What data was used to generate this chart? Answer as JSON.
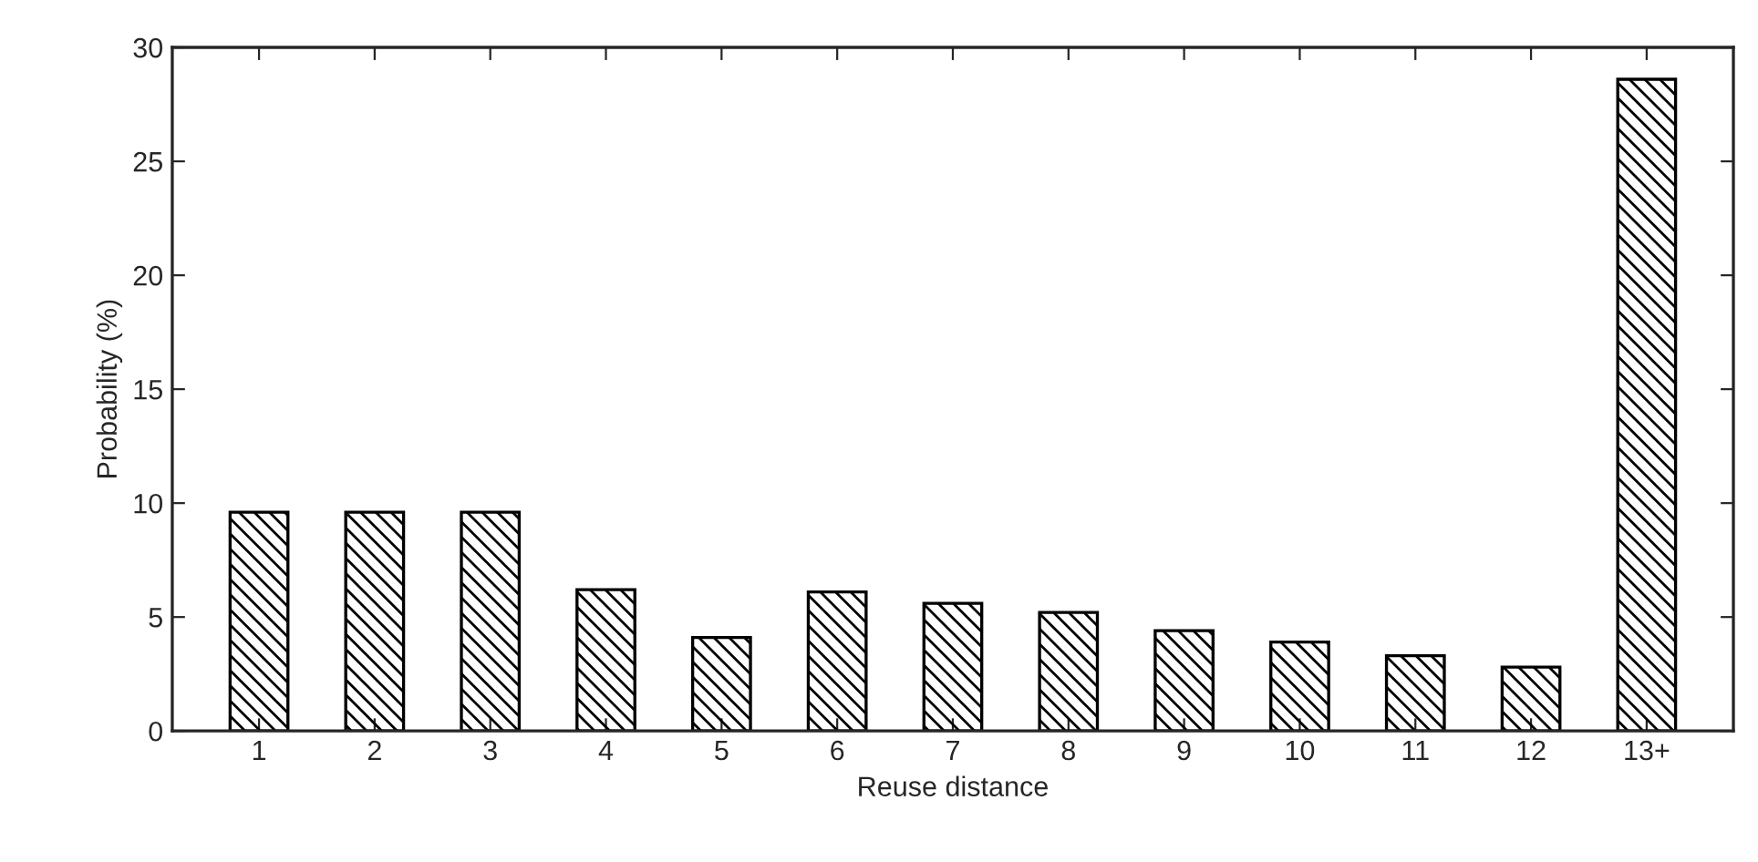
{
  "chart_data": {
    "type": "bar",
    "xlabel": "Reuse distance",
    "ylabel": "Probability (%)",
    "categories": [
      "1",
      "2",
      "3",
      "4",
      "5",
      "6",
      "7",
      "8",
      "9",
      "10",
      "11",
      "12",
      "13+"
    ],
    "values": [
      9.6,
      9.6,
      9.6,
      6.2,
      4.1,
      6.1,
      5.6,
      5.2,
      4.4,
      3.9,
      3.3,
      2.8,
      28.6
    ],
    "color": "#000000",
    "ylim": [
      0,
      30
    ],
    "yticks": [
      0,
      5,
      10,
      15,
      20,
      25,
      30
    ],
    "grid": false,
    "legend": false
  }
}
